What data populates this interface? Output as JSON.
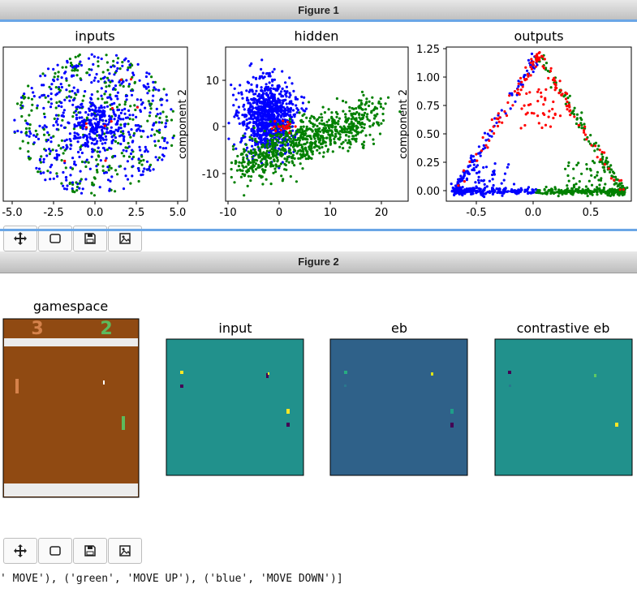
{
  "figure1": {
    "title": "Figure 1",
    "plots": [
      {
        "title": "inputs",
        "xticks": [
          "-5.0",
          "-2.5",
          "0.0",
          "2.5",
          "5.0"
        ],
        "ylabel": ""
      },
      {
        "title": "hidden",
        "xticks": [
          "-10",
          "0",
          "10",
          "20"
        ],
        "yticks": [
          "10",
          "0",
          "-10"
        ],
        "ylabel": "component 2"
      },
      {
        "title": "outputs",
        "xticks": [
          "-0.5",
          "0.0",
          "0.5"
        ],
        "yticks": [
          "1.25",
          "1.00",
          "0.75",
          "0.50",
          "0.25",
          "0.00"
        ],
        "ylabel": "component 2"
      }
    ]
  },
  "figure2": {
    "title": "Figure 2",
    "panels": [
      "gamespace",
      "input",
      "eb",
      "contrastive eb"
    ],
    "score_left": "3",
    "score_right": "2"
  },
  "toolbar_icons": [
    "move-icon",
    "select-rect-icon",
    "save-icon",
    "image-icon"
  ],
  "console_text": "' MOVE'), ('green', 'MOVE UP'), ('blue', 'MOVE DOWN')]",
  "colors": {
    "blue": "#0000ff",
    "green": "#008000",
    "red": "#ff0000",
    "pong_bg": "#904a12",
    "teal": "#21918c",
    "eb_blue": "#2f6189"
  }
}
